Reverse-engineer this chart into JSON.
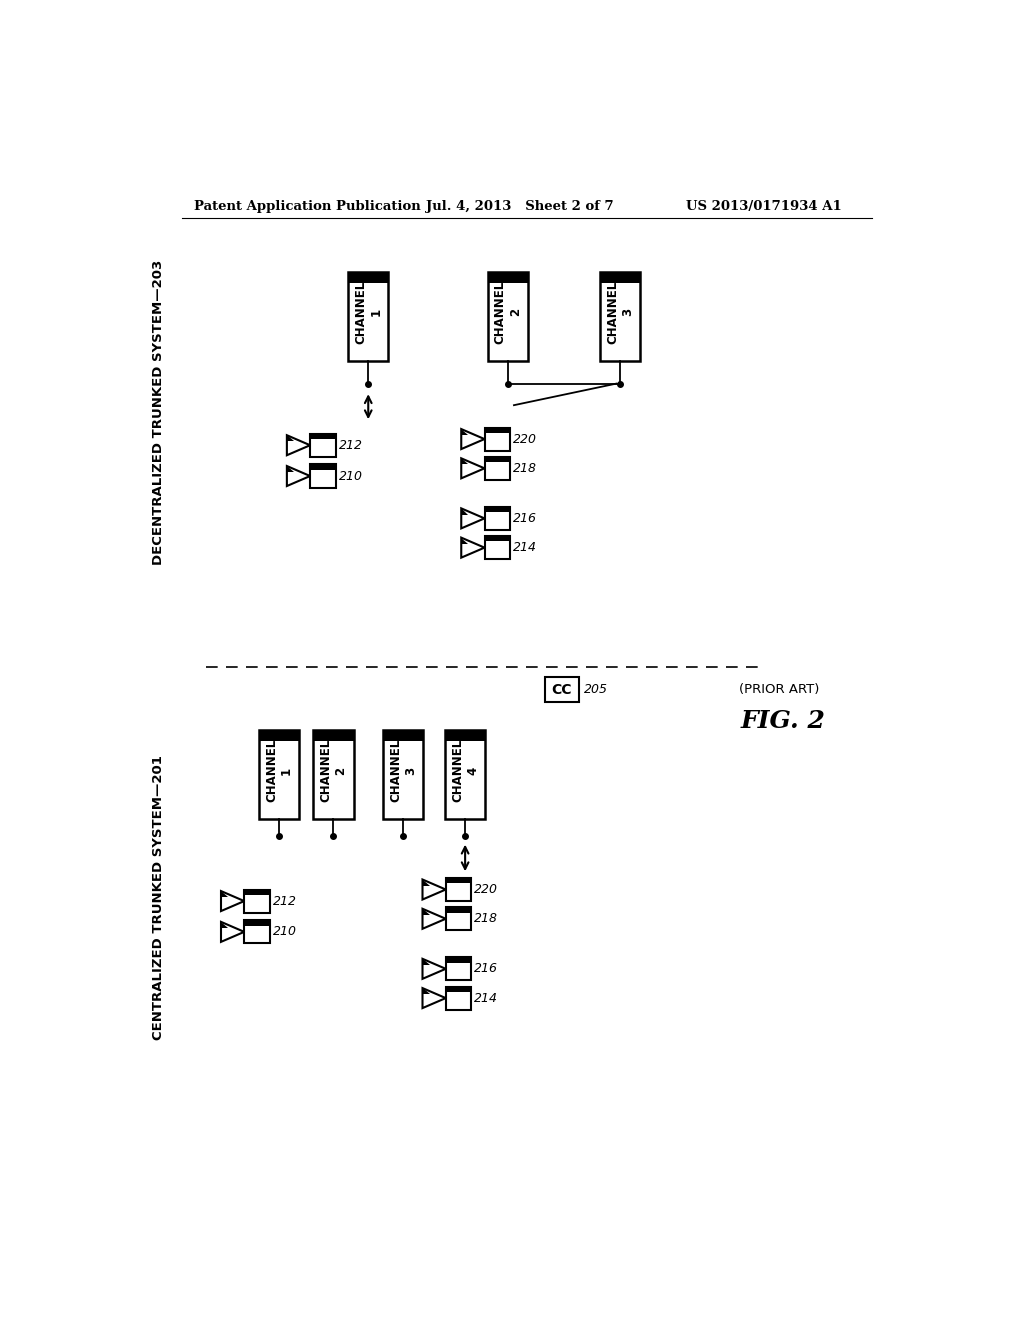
{
  "bg_color": "#ffffff",
  "header_left": "Patent Application Publication",
  "header_mid": "Jul. 4, 2013   Sheet 2 of 7",
  "header_right": "US 2013/0171934 A1",
  "fig_label": "FIG. 2",
  "prior_art": "(PRIOR ART)",
  "top_label": "DECENTRALIZED TRUNKED SYSTEM—203",
  "bot_label": "CENTRALIZED TRUNKED SYSTEM—201",
  "cc_label": "CC",
  "cc_num": "205"
}
